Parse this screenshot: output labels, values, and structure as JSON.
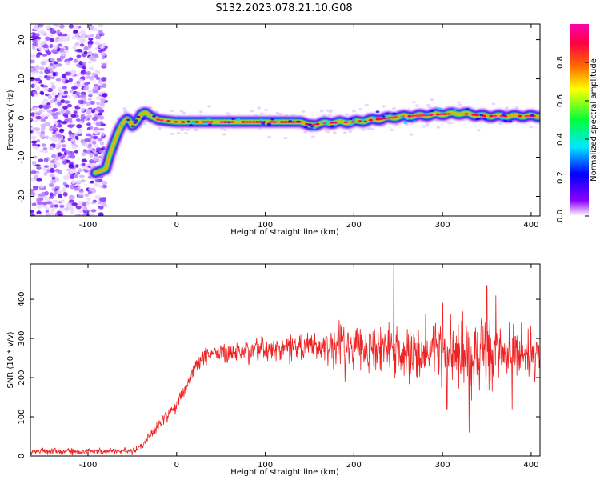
{
  "title": "S132.2023.078.21.10.G08",
  "colors": {
    "snr_line": "#ee2222",
    "colorbar": [
      "#ffffff",
      "#8a00ff",
      "#0000ff",
      "#00e8ff",
      "#00ff3a",
      "#ffff00",
      "#ff6a00",
      "#ff0044",
      "#ff00aa"
    ]
  },
  "chart_data": [
    {
      "type": "heatmap",
      "title": "",
      "xlabel": "Height of straight line (km)",
      "ylabel": "Frequency (Hz)",
      "xlim": [
        -165,
        410
      ],
      "ylim": [
        -25,
        24
      ],
      "xticks": [
        -100,
        0,
        100,
        200,
        300,
        400
      ],
      "yticks": [
        -20,
        -10,
        0,
        10,
        20
      ],
      "colorbar": {
        "label": "Normalized spectral amplitude",
        "range": [
          0,
          1
        ],
        "ticks": [
          "0.0",
          "0.2",
          "0.4",
          "0.6",
          "0.8"
        ],
        "tick_values": [
          0.0,
          0.2,
          0.4,
          0.6,
          0.8
        ]
      },
      "ridge": {
        "x": [
          -92,
          -80,
          -75,
          -70,
          -65,
          -60,
          -55,
          -50,
          -45,
          -40,
          -35,
          -30,
          -20,
          0,
          50,
          100,
          140,
          150,
          170,
          200,
          220,
          250,
          300,
          320,
          350,
          380,
          410
        ],
        "y": [
          -14,
          -13,
          -9,
          -6,
          -3,
          -1,
          0,
          -2,
          -1,
          1,
          1.5,
          0.5,
          -0.5,
          -1,
          -1,
          -1,
          -1,
          -1.8,
          -1.2,
          -1,
          -0.5,
          0.3,
          1,
          1.2,
          0.5,
          0.5,
          0.5
        ]
      },
      "noise_region_x": [
        -165,
        -80
      ]
    },
    {
      "type": "line",
      "title": "",
      "xlabel": "Height of straight line (km)",
      "ylabel": "SNR (10 * v/v)",
      "xlim": [
        -165,
        410
      ],
      "ylim": [
        0,
        490
      ],
      "xticks": [
        -100,
        0,
        100,
        200,
        300,
        400
      ],
      "yticks": [
        0,
        100,
        200,
        300,
        400
      ],
      "series": [
        {
          "trend_x": [
            -165,
            -50,
            -40,
            -20,
            0,
            10,
            20,
            30,
            40,
            60,
            100,
            150,
            200,
            250,
            300,
            350,
            410
          ],
          "trend_y": [
            12,
            12,
            25,
            80,
            130,
            175,
            225,
            250,
            262,
            265,
            270,
            278,
            282,
            270,
            265,
            262,
            262
          ],
          "noise_x": [
            -165,
            -50,
            40,
            120,
            220,
            300,
            340,
            410
          ],
          "noise_amp": [
            6,
            6,
            18,
            25,
            45,
            65,
            75,
            45
          ],
          "spikes": [
            [
              245,
              490
            ],
            [
              350,
              435
            ],
            [
              330,
              60
            ],
            [
              360,
              410
            ],
            [
              300,
              390
            ],
            [
              305,
              120
            ]
          ]
        }
      ]
    }
  ]
}
